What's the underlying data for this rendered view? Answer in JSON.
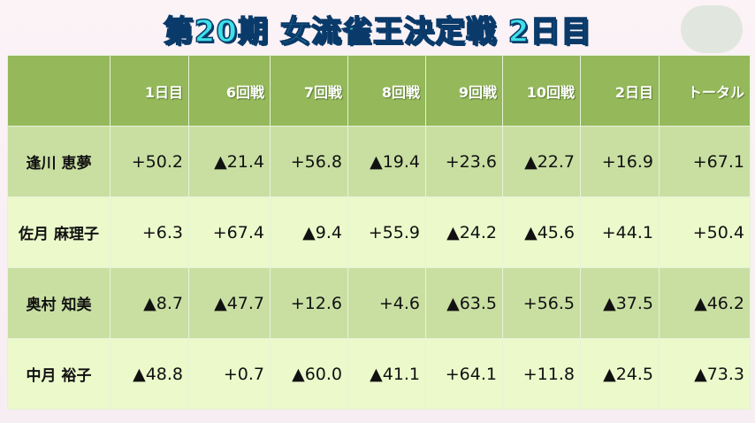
{
  "header": {
    "title": "第20期 女流雀王決定戦 2日目"
  },
  "table": {
    "columns": [
      "1日目",
      "6回戦",
      "7回戦",
      "8回戦",
      "9回戦",
      "10回戦",
      "2日目",
      "トータル"
    ],
    "rows": [
      {
        "name": "逢川 恵夢",
        "cells": [
          "+50.2",
          "▲21.4",
          "+56.8",
          "▲19.4",
          "+23.6",
          "▲22.7",
          "+16.9",
          "+67.1"
        ]
      },
      {
        "name": "佐月 麻理子",
        "cells": [
          "+6.3",
          "+67.4",
          "▲9.4",
          "+55.9",
          "▲24.2",
          "▲45.6",
          "+44.1",
          "+50.4"
        ]
      },
      {
        "name": "奥村 知美",
        "cells": [
          "▲8.7",
          "▲47.7",
          "+12.6",
          "+4.6",
          "▲63.5",
          "+56.5",
          "▲37.5",
          "▲46.2"
        ]
      },
      {
        "name": "中月 裕子",
        "cells": [
          "▲48.8",
          "+0.7",
          "▲60.0",
          "▲41.1",
          "+64.1",
          "+11.8",
          "▲24.5",
          "▲73.3"
        ]
      }
    ]
  }
}
